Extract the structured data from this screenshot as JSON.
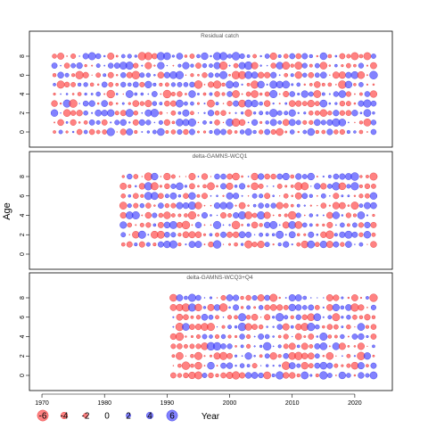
{
  "chart_data": {
    "type": "scatter",
    "subtype": "bubble-residual",
    "xlabel": "Year",
    "ylabel": "Age",
    "xlim": [
      1968,
      2026
    ],
    "x_ticks": [
      1970,
      1980,
      1990,
      2000,
      2010,
      2020
    ],
    "y_ticks": [
      0,
      2,
      4,
      6,
      8
    ],
    "ages": [
      0,
      1,
      2,
      3,
      4,
      5,
      6,
      7,
      8
    ],
    "colors": {
      "positive": "#4d4dff",
      "negative": "#ff4d4d"
    },
    "panels": [
      {
        "title": "Residual catch",
        "year_start": 1972,
        "year_end": 2023,
        "age_min": 0,
        "age_max": 8,
        "seed": 11
      },
      {
        "title": "delta-GAMNS-WCQ1",
        "year_start": 1983,
        "year_end": 2023,
        "age_min": 1,
        "age_max": 8,
        "seed": 23
      },
      {
        "title": "delta-GAMNS-WCQ3+Q4",
        "year_start": 1991,
        "year_end": 2023,
        "age_min": 0,
        "age_max": 8,
        "seed": 37
      }
    ],
    "legend": {
      "values": [
        -6,
        -4,
        -2,
        0,
        2,
        4,
        6
      ],
      "labels": [
        "-6",
        "-4",
        "-2",
        "0",
        "2",
        "4",
        "6"
      ],
      "title": "Year"
    }
  }
}
